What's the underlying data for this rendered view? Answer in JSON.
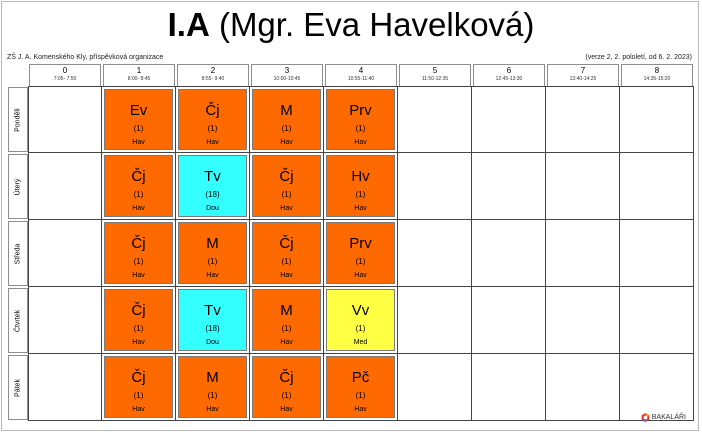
{
  "header": {
    "class_name": "I.A",
    "teacher_title": "(Mgr. Eva Havelková)",
    "school": "ZŠ J. A. Komenského Kly, příspěvková organizace",
    "version": "(verze 2, 2. pololetí, od 6. 2. 2023)"
  },
  "periods": [
    {
      "num": "0",
      "time": "7:05- 7:50"
    },
    {
      "num": "1",
      "time": "8:00- 8:45"
    },
    {
      "num": "2",
      "time": "8:55- 9:40"
    },
    {
      "num": "3",
      "time": "10:00-10:45"
    },
    {
      "num": "4",
      "time": "10:55-11:40"
    },
    {
      "num": "5",
      "time": "11:50-12:35"
    },
    {
      "num": "6",
      "time": "12:45-13:30"
    },
    {
      "num": "7",
      "time": "13:40-14:25"
    },
    {
      "num": "8",
      "time": "14:35-15:20"
    }
  ],
  "days": [
    {
      "name": "Pondělí",
      "lessons": [
        {
          "period": 1,
          "subject": "Ev",
          "room": "(1)",
          "teacher": "Hav",
          "color": "#ff6a00"
        },
        {
          "period": 2,
          "subject": "Čj",
          "room": "(1)",
          "teacher": "Hav",
          "color": "#ff6a00"
        },
        {
          "period": 3,
          "subject": "M",
          "room": "(1)",
          "teacher": "Hav",
          "color": "#ff6a00"
        },
        {
          "period": 4,
          "subject": "Prv",
          "room": "(1)",
          "teacher": "Hav",
          "color": "#ff6a00"
        }
      ]
    },
    {
      "name": "Úterý",
      "lessons": [
        {
          "period": 1,
          "subject": "Čj",
          "room": "(1)",
          "teacher": "Hav",
          "color": "#ff6a00"
        },
        {
          "period": 2,
          "subject": "Tv",
          "room": "(18)",
          "teacher": "Dou",
          "color": "#33ffff"
        },
        {
          "period": 3,
          "subject": "Čj",
          "room": "(1)",
          "teacher": "Hav",
          "color": "#ff6a00"
        },
        {
          "period": 4,
          "subject": "Hv",
          "room": "(1)",
          "teacher": "Hav",
          "color": "#ff6a00"
        }
      ]
    },
    {
      "name": "Středa",
      "lessons": [
        {
          "period": 1,
          "subject": "Čj",
          "room": "(1)",
          "teacher": "Hav",
          "color": "#ff6a00"
        },
        {
          "period": 2,
          "subject": "M",
          "room": "(1)",
          "teacher": "Hav",
          "color": "#ff6a00"
        },
        {
          "period": 3,
          "subject": "Čj",
          "room": "(1)",
          "teacher": "Hav",
          "color": "#ff6a00"
        },
        {
          "period": 4,
          "subject": "Prv",
          "room": "(1)",
          "teacher": "Hav",
          "color": "#ff6a00"
        }
      ]
    },
    {
      "name": "Čtvrtek",
      "lessons": [
        {
          "period": 1,
          "subject": "Čj",
          "room": "(1)",
          "teacher": "Hav",
          "color": "#ff6a00"
        },
        {
          "period": 2,
          "subject": "Tv",
          "room": "(18)",
          "teacher": "Dou",
          "color": "#33ffff"
        },
        {
          "period": 3,
          "subject": "M",
          "room": "(1)",
          "teacher": "Hav",
          "color": "#ff6a00"
        },
        {
          "period": 4,
          "subject": "Vv",
          "room": "(1)",
          "teacher": "Med",
          "color": "#ffff44"
        }
      ]
    },
    {
      "name": "Pátek",
      "lessons": [
        {
          "period": 1,
          "subject": "Čj",
          "room": "(1)",
          "teacher": "Hav",
          "color": "#ff6a00"
        },
        {
          "period": 2,
          "subject": "M",
          "room": "(1)",
          "teacher": "Hav",
          "color": "#ff6a00"
        },
        {
          "period": 3,
          "subject": "Čj",
          "room": "(1)",
          "teacher": "Hav",
          "color": "#ff6a00"
        },
        {
          "period": 4,
          "subject": "Pč",
          "room": "(1)",
          "teacher": "Hav",
          "color": "#ff6a00"
        }
      ]
    }
  ],
  "logo": {
    "text": "BAKALÁŘI",
    "icon": "bakalari-logo-icon"
  }
}
